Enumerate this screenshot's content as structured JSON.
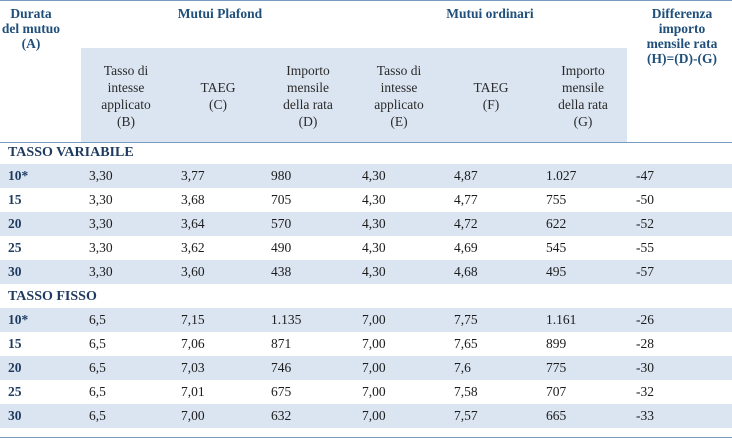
{
  "header": {
    "durata": [
      "Durata",
      "del mutuo",
      "(A)"
    ],
    "plafond_group": "Mutui Plafond",
    "ordinari_group": "Mutui ordinari",
    "differenza": [
      "Differenza",
      "importo",
      "mensile rata",
      "(H)=(D)-(G)"
    ]
  },
  "subheaders": {
    "plafond": [
      [
        "Tasso di",
        "intesse",
        "applicato",
        "(B)"
      ],
      [
        "TAEG",
        "(C)"
      ],
      [
        "Importo",
        "mensile",
        "della rata",
        "(D)"
      ]
    ],
    "ordinari": [
      [
        "Tasso di",
        "intesse",
        "applicato",
        "(E)"
      ],
      [
        "TAEG",
        "(F)"
      ],
      [
        "Importo",
        "mensile",
        "della rata",
        "(G)"
      ]
    ]
  },
  "sections": [
    {
      "title": "TASSO VARIABILE",
      "rows": [
        [
          "10*",
          "3,30",
          "3,77",
          "980",
          "4,30",
          "4,87",
          "1.027",
          "-47"
        ],
        [
          "15",
          "3,30",
          "3,68",
          "705",
          "4,30",
          "4,77",
          "755",
          "-50"
        ],
        [
          "20",
          "3,30",
          "3,64",
          "570",
          "4,30",
          "4,72",
          "622",
          "-52"
        ],
        [
          "25",
          "3,30",
          "3,62",
          "490",
          "4,30",
          "4,69",
          "545",
          "-55"
        ],
        [
          "30",
          "3,30",
          "3,60",
          "438",
          "4,30",
          "4,68",
          "495",
          "-57"
        ]
      ]
    },
    {
      "title": "TASSO FISSO",
      "rows": [
        [
          "10*",
          "6,5",
          "7,15",
          "1.135",
          "7,00",
          "7,75",
          "1.161",
          "-26"
        ],
        [
          "15",
          "6,5",
          "7,06",
          "871",
          "7,00",
          "7,65",
          "899",
          "-28"
        ],
        [
          "20",
          "6,5",
          "7,03",
          "746",
          "7,00",
          "7,6",
          "775",
          "-30"
        ],
        [
          "25",
          "6,5",
          "7,01",
          "675",
          "7,00",
          "7,58",
          "707",
          "-32"
        ],
        [
          "30",
          "6,5",
          "7,00",
          "632",
          "7,00",
          "7,57",
          "665",
          "-33"
        ]
      ]
    }
  ]
}
